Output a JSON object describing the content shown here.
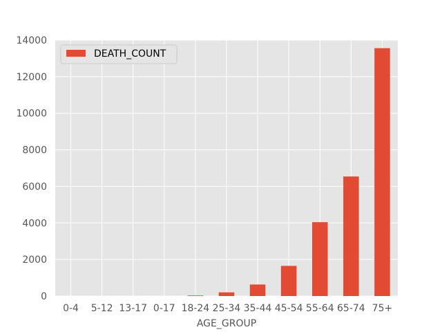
{
  "chart_data": {
    "type": "bar",
    "categories": [
      "0-4",
      "5-12",
      "13-17",
      "0-17",
      "18-24",
      "25-34",
      "35-44",
      "45-54",
      "55-64",
      "65-74",
      "75+"
    ],
    "series": [
      {
        "name": "DEATH_COUNT",
        "values": [
          0,
          0,
          0,
          0,
          30,
          200,
          630,
          1650,
          4040,
          6540,
          13560
        ],
        "color": "#E24A33"
      }
    ],
    "xlabel": "AGE_GROUP",
    "ylabel": "",
    "ylim": [
      0,
      14000
    ],
    "yticks": [
      0,
      2000,
      4000,
      6000,
      8000,
      10000,
      12000,
      14000
    ],
    "grid": true,
    "legend": "top-left",
    "background": "#E5E5E5",
    "grid_color": "#FFFFFF"
  }
}
